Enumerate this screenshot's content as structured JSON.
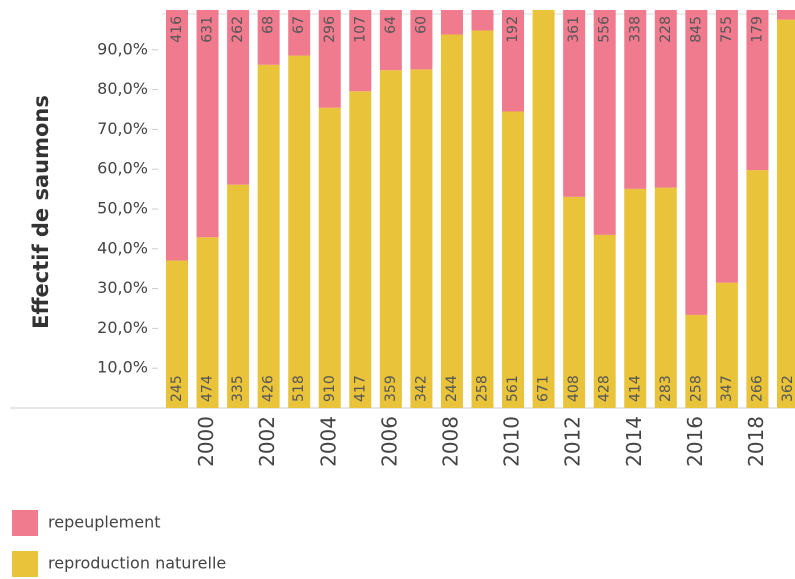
{
  "chart_data": {
    "type": "stacked_percent_bar",
    "y_label": "Effectif de saumons",
    "categories": [
      null,
      "2000",
      null,
      "2002",
      null,
      "2004",
      null,
      "2006",
      null,
      "2008",
      null,
      "2010",
      null,
      "2012",
      null,
      "2014",
      null,
      "2016",
      null,
      "2018",
      null
    ],
    "series": [
      {
        "name": "repeuplement",
        "color": "#f07b8f",
        "values": [
          416,
          631,
          262,
          68,
          67,
          296,
          107,
          64,
          60,
          16,
          14,
          192,
          0,
          361,
          556,
          338,
          228,
          845,
          755,
          179,
          9
        ]
      },
      {
        "name": "reproduction naturelle",
        "color": "#e9c43b",
        "values": [
          245,
          474,
          335,
          426,
          518,
          910,
          417,
          359,
          342,
          244,
          258,
          561,
          671,
          408,
          428,
          414,
          283,
          258,
          347,
          266,
          362
        ]
      }
    ],
    "ylim": [
      0,
      100
    ],
    "yticks": [
      {
        "value": 10,
        "label": "10,0%"
      },
      {
        "value": 20,
        "label": "20,0%"
      },
      {
        "value": 30,
        "label": "30,0%"
      },
      {
        "value": 40,
        "label": "40,0%"
      },
      {
        "value": 50,
        "label": "50,0%"
      },
      {
        "value": 60,
        "label": "60,0%"
      },
      {
        "value": 70,
        "label": "70,0%"
      },
      {
        "value": 80,
        "label": "80,0%"
      },
      {
        "value": 90,
        "label": "90,0%"
      }
    ]
  }
}
